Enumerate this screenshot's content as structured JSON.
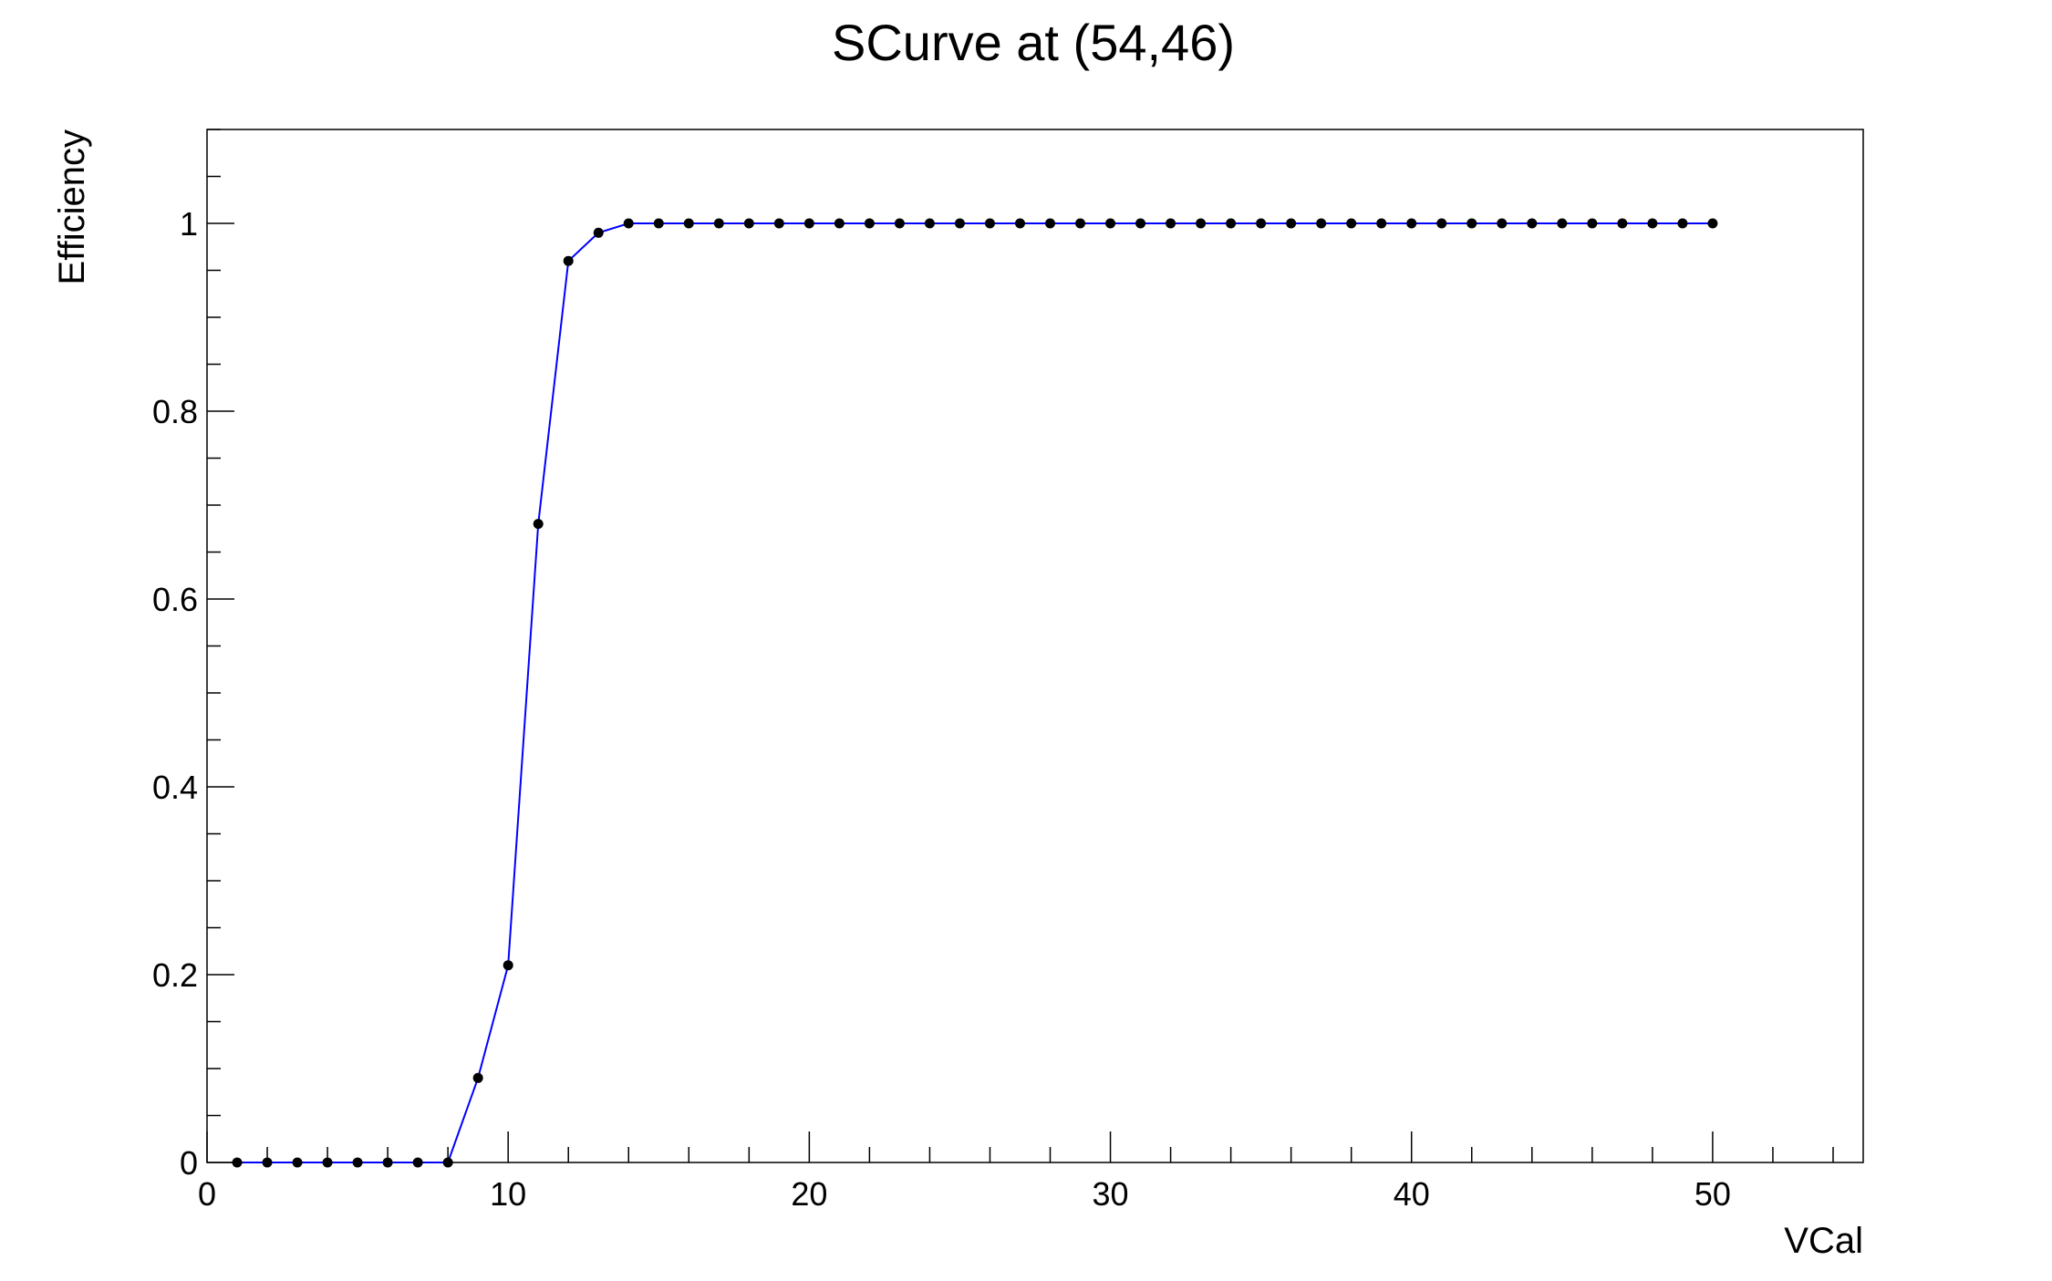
{
  "chart_data": {
    "type": "line",
    "title": "SCurve at (54,46)",
    "xlabel": "VCal",
    "ylabel": "Efficiency",
    "xlim": [
      0,
      55
    ],
    "ylim": [
      0,
      1.1
    ],
    "grid": false,
    "x_ticks": [
      0,
      10,
      20,
      30,
      40,
      50
    ],
    "x_tick_labels": [
      "0",
      "10",
      "20",
      "30",
      "40",
      "50"
    ],
    "y_ticks": [
      0,
      0.2,
      0.4,
      0.6,
      0.8,
      1
    ],
    "y_tick_labels": [
      "0",
      "0.2",
      "0.4",
      "0.6",
      "0.8",
      "1"
    ],
    "line_color": "#0000ff",
    "marker_color": "#000000",
    "series": [
      {
        "x": [
          1,
          2,
          3,
          4,
          5,
          6,
          7,
          8,
          9,
          10,
          11,
          12,
          13,
          14,
          15,
          16,
          17,
          18,
          19,
          20,
          21,
          22,
          23,
          24,
          25,
          26,
          27,
          28,
          29,
          30,
          31,
          32,
          33,
          34,
          35,
          36,
          37,
          38,
          39,
          40,
          41,
          42,
          43,
          44,
          45,
          46,
          47,
          48,
          49,
          50
        ],
        "y": [
          0,
          0,
          0,
          0,
          0,
          0,
          0,
          0,
          0.09,
          0.21,
          0.68,
          0.96,
          0.99,
          1,
          1,
          1,
          1,
          1,
          1,
          1,
          1,
          1,
          1,
          1,
          1,
          1,
          1,
          1,
          1,
          1,
          1,
          1,
          1,
          1,
          1,
          1,
          1,
          1,
          1,
          1,
          1,
          1,
          1,
          1,
          1,
          1,
          1,
          1,
          1,
          1
        ]
      }
    ]
  }
}
